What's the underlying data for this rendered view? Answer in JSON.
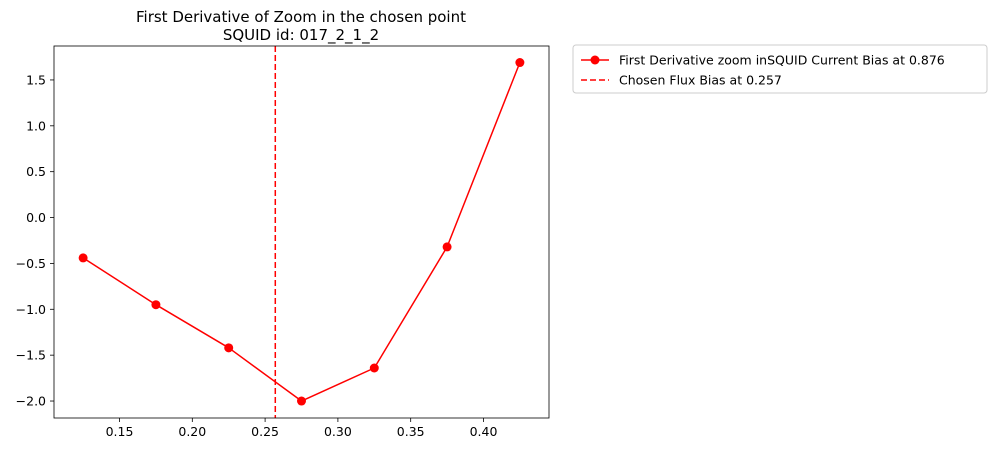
{
  "chart_data": {
    "type": "line",
    "title": "First Derivative of Zoom in the chosen point",
    "subtitle": "SQUID id: 017_2_1_2",
    "xlabel": "",
    "ylabel": "",
    "xlim": [
      0.105,
      0.445
    ],
    "ylim": [
      -2.185,
      1.87
    ],
    "xticks": [
      0.15,
      0.2,
      0.25,
      0.3,
      0.35,
      0.4
    ],
    "xtick_labels": [
      "0.15",
      "0.20",
      "0.25",
      "0.30",
      "0.35",
      "0.40"
    ],
    "yticks": [
      -2.0,
      -1.5,
      -1.0,
      -0.5,
      0.0,
      0.5,
      1.0,
      1.5
    ],
    "ytick_labels": [
      "−2.0",
      "−1.5",
      "−1.0",
      "−0.5",
      "0.0",
      "0.5",
      "1.0",
      "1.5"
    ],
    "grid": false,
    "legend_position": "outside-top-right",
    "series": [
      {
        "name": "First Derivative zoom inSQUID Current Bias at 0.876",
        "color": "#ff0000",
        "marker": "circle",
        "x": [
          0.125,
          0.175,
          0.225,
          0.275,
          0.325,
          0.375,
          0.425
        ],
        "y": [
          -0.44,
          -0.95,
          -1.42,
          -2.0,
          -1.64,
          -0.32,
          1.69
        ]
      }
    ],
    "vlines": [
      {
        "name": "Chosen Flux Bias at 0.257",
        "x": 0.257,
        "color": "#ff0000",
        "style": "dashed"
      }
    ]
  }
}
